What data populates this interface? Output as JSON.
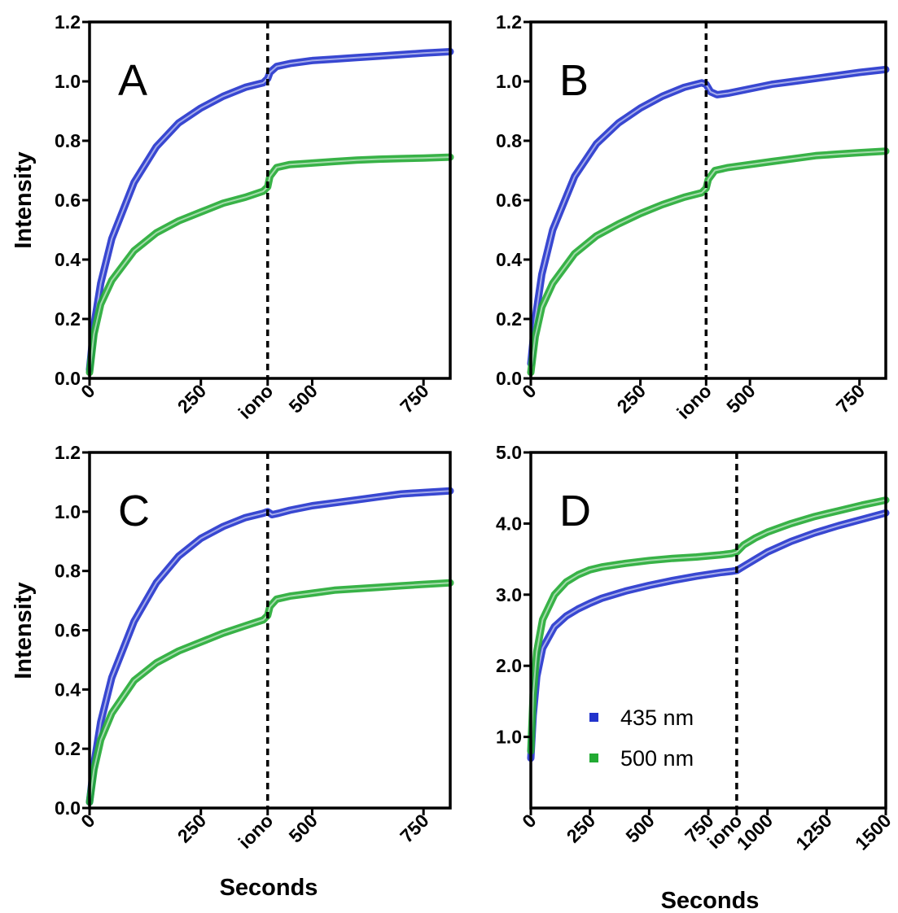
{
  "chart_data": [
    {
      "panel": "A",
      "type": "line",
      "ylabel": "Intensity",
      "xlabel": "",
      "xlim": [
        0,
        810
      ],
      "ylim": [
        0,
        1.2
      ],
      "xticks": [
        {
          "value": 0,
          "label": "0"
        },
        {
          "value": 250,
          "label": "250"
        },
        {
          "value": 400,
          "label": "iono"
        },
        {
          "value": 500,
          "label": "500"
        },
        {
          "value": 750,
          "label": "750"
        }
      ],
      "yticks": [
        {
          "value": 0,
          "label": "0.0"
        },
        {
          "value": 0.2,
          "label": "0.2"
        },
        {
          "value": 0.4,
          "label": "0.4"
        },
        {
          "value": 0.6,
          "label": "0.6"
        },
        {
          "value": 0.8,
          "label": "0.8"
        },
        {
          "value": 1.0,
          "label": "1.0"
        },
        {
          "value": 1.2,
          "label": "1.2"
        }
      ],
      "event_x": 400,
      "series": [
        {
          "color": "#2233cc",
          "x": [
            0,
            10,
            25,
            50,
            100,
            150,
            200,
            250,
            300,
            350,
            390,
            400,
            405,
            420,
            450,
            500,
            550,
            600,
            650,
            700,
            750,
            810
          ],
          "y": [
            0.03,
            0.18,
            0.32,
            0.47,
            0.66,
            0.78,
            0.86,
            0.91,
            0.95,
            0.98,
            0.995,
            1.01,
            1.03,
            1.05,
            1.06,
            1.07,
            1.075,
            1.08,
            1.085,
            1.09,
            1.095,
            1.1
          ]
        },
        {
          "color": "#22aa33",
          "x": [
            0,
            10,
            25,
            50,
            100,
            150,
            200,
            250,
            300,
            350,
            390,
            400,
            405,
            420,
            450,
            500,
            550,
            600,
            650,
            700,
            750,
            810
          ],
          "y": [
            0.02,
            0.15,
            0.25,
            0.33,
            0.43,
            0.49,
            0.53,
            0.56,
            0.59,
            0.61,
            0.63,
            0.645,
            0.68,
            0.71,
            0.72,
            0.725,
            0.73,
            0.735,
            0.738,
            0.74,
            0.742,
            0.745
          ]
        }
      ]
    },
    {
      "panel": "B",
      "type": "line",
      "ylabel": "",
      "xlabel": "",
      "xlim": [
        0,
        810
      ],
      "ylim": [
        0,
        1.2
      ],
      "xticks": [
        {
          "value": 0,
          "label": "0"
        },
        {
          "value": 250,
          "label": "250"
        },
        {
          "value": 400,
          "label": "iono"
        },
        {
          "value": 500,
          "label": "500"
        },
        {
          "value": 750,
          "label": "750"
        }
      ],
      "yticks": [
        {
          "value": 0,
          "label": "0.0"
        },
        {
          "value": 0.2,
          "label": "0.2"
        },
        {
          "value": 0.4,
          "label": "0.4"
        },
        {
          "value": 0.6,
          "label": "0.6"
        },
        {
          "value": 0.8,
          "label": "0.8"
        },
        {
          "value": 1.0,
          "label": "1.0"
        },
        {
          "value": 1.2,
          "label": "1.2"
        }
      ],
      "event_x": 400,
      "series": [
        {
          "color": "#2233cc",
          "x": [
            0,
            10,
            25,
            50,
            100,
            150,
            200,
            250,
            300,
            350,
            390,
            400,
            410,
            425,
            450,
            500,
            550,
            600,
            650,
            700,
            750,
            810
          ],
          "y": [
            0.05,
            0.2,
            0.35,
            0.5,
            0.68,
            0.79,
            0.86,
            0.91,
            0.95,
            0.98,
            0.995,
            0.99,
            0.965,
            0.955,
            0.96,
            0.975,
            0.99,
            1.0,
            1.01,
            1.02,
            1.03,
            1.04
          ]
        },
        {
          "color": "#22aa33",
          "x": [
            0,
            10,
            25,
            50,
            100,
            150,
            200,
            250,
            300,
            350,
            390,
            400,
            405,
            420,
            450,
            500,
            550,
            600,
            650,
            700,
            750,
            810
          ],
          "y": [
            0.02,
            0.14,
            0.24,
            0.32,
            0.42,
            0.48,
            0.52,
            0.555,
            0.585,
            0.61,
            0.625,
            0.64,
            0.67,
            0.7,
            0.71,
            0.72,
            0.73,
            0.74,
            0.75,
            0.755,
            0.76,
            0.765
          ]
        }
      ]
    },
    {
      "panel": "C",
      "type": "line",
      "ylabel": "Intensity",
      "xlabel": "Seconds",
      "xlim": [
        0,
        810
      ],
      "ylim": [
        0,
        1.2
      ],
      "xticks": [
        {
          "value": 0,
          "label": "0"
        },
        {
          "value": 250,
          "label": "250"
        },
        {
          "value": 400,
          "label": "iono"
        },
        {
          "value": 500,
          "label": "500"
        },
        {
          "value": 750,
          "label": "750"
        }
      ],
      "yticks": [
        {
          "value": 0,
          "label": "0.0"
        },
        {
          "value": 0.2,
          "label": "0.2"
        },
        {
          "value": 0.4,
          "label": "0.4"
        },
        {
          "value": 0.6,
          "label": "0.6"
        },
        {
          "value": 0.8,
          "label": "0.8"
        },
        {
          "value": 1.0,
          "label": "1.0"
        },
        {
          "value": 1.2,
          "label": "1.2"
        }
      ],
      "event_x": 400,
      "series": [
        {
          "color": "#2233cc",
          "x": [
            0,
            10,
            25,
            50,
            100,
            150,
            200,
            250,
            300,
            350,
            390,
            400,
            410,
            425,
            450,
            500,
            550,
            600,
            650,
            700,
            750,
            810
          ],
          "y": [
            0.02,
            0.15,
            0.29,
            0.44,
            0.63,
            0.76,
            0.85,
            0.91,
            0.95,
            0.98,
            0.995,
            1.0,
            0.99,
            0.995,
            1.005,
            1.02,
            1.03,
            1.04,
            1.05,
            1.06,
            1.065,
            1.07
          ]
        },
        {
          "color": "#22aa33",
          "x": [
            0,
            10,
            25,
            50,
            100,
            150,
            200,
            250,
            300,
            350,
            390,
            400,
            405,
            420,
            450,
            500,
            550,
            600,
            650,
            700,
            750,
            810
          ],
          "y": [
            0.02,
            0.13,
            0.23,
            0.32,
            0.43,
            0.49,
            0.53,
            0.56,
            0.59,
            0.615,
            0.635,
            0.65,
            0.68,
            0.705,
            0.715,
            0.725,
            0.735,
            0.74,
            0.745,
            0.75,
            0.755,
            0.76
          ]
        }
      ]
    },
    {
      "panel": "D",
      "type": "line",
      "ylabel": "",
      "xlabel": "Seconds",
      "xlim": [
        0,
        1500
      ],
      "ylim": [
        0,
        5.0
      ],
      "xticks": [
        {
          "value": 0,
          "label": "0"
        },
        {
          "value": 250,
          "label": "250"
        },
        {
          "value": 500,
          "label": "500"
        },
        {
          "value": 750,
          "label": "750"
        },
        {
          "value": 870,
          "label": "iono"
        },
        {
          "value": 1000,
          "label": "1000"
        },
        {
          "value": 1250,
          "label": "1250"
        },
        {
          "value": 1500,
          "label": "1500"
        }
      ],
      "yticks": [
        {
          "value": 1,
          "label": "1.0"
        },
        {
          "value": 2,
          "label": "2.0"
        },
        {
          "value": 3,
          "label": "3.0"
        },
        {
          "value": 4,
          "label": "4.0"
        },
        {
          "value": 5,
          "label": "5.0"
        }
      ],
      "event_x": 870,
      "legend": {
        "position": "bottom-left",
        "entries": [
          {
            "label": "435 nm",
            "color": "#2233cc"
          },
          {
            "label": "500 nm",
            "color": "#22aa33"
          }
        ]
      },
      "series": [
        {
          "name": "435 nm",
          "color": "#2233cc",
          "x": [
            0,
            10,
            25,
            50,
            100,
            150,
            200,
            250,
            300,
            400,
            500,
            600,
            700,
            800,
            850,
            870,
            900,
            950,
            1000,
            1100,
            1200,
            1300,
            1400,
            1500
          ],
          "y": [
            0.7,
            1.3,
            1.85,
            2.25,
            2.55,
            2.7,
            2.8,
            2.88,
            2.95,
            3.05,
            3.13,
            3.2,
            3.26,
            3.31,
            3.33,
            3.34,
            3.4,
            3.5,
            3.6,
            3.75,
            3.87,
            3.97,
            4.06,
            4.15
          ]
        },
        {
          "name": "500 nm",
          "color": "#22aa33",
          "x": [
            0,
            10,
            25,
            50,
            100,
            150,
            200,
            250,
            300,
            400,
            500,
            600,
            700,
            800,
            850,
            870,
            900,
            950,
            1000,
            1100,
            1200,
            1300,
            1400,
            1500
          ],
          "y": [
            0.8,
            1.6,
            2.2,
            2.65,
            3.0,
            3.18,
            3.28,
            3.35,
            3.39,
            3.44,
            3.48,
            3.51,
            3.53,
            3.56,
            3.58,
            3.6,
            3.7,
            3.8,
            3.88,
            4.0,
            4.1,
            4.18,
            4.26,
            4.33
          ]
        }
      ]
    }
  ]
}
